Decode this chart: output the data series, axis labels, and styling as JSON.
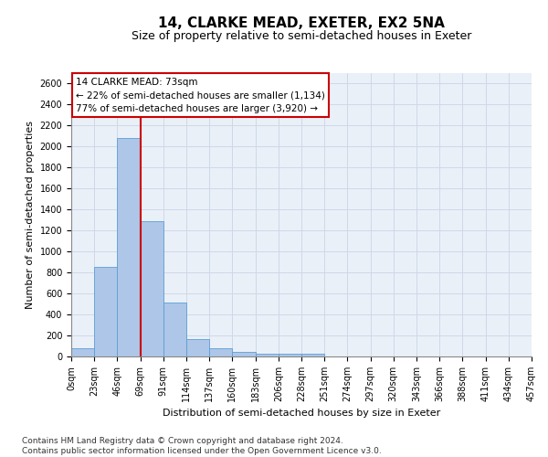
{
  "title": "14, CLARKE MEAD, EXETER, EX2 5NA",
  "subtitle": "Size of property relative to semi-detached houses in Exeter",
  "xlabel": "Distribution of semi-detached houses by size in Exeter",
  "ylabel": "Number of semi-detached properties",
  "bar_values": [
    75,
    850,
    2080,
    1285,
    510,
    165,
    75,
    40,
    30,
    25,
    25,
    0,
    0,
    0,
    0,
    0,
    0,
    0,
    0,
    0
  ],
  "bin_labels": [
    "0sqm",
    "23sqm",
    "46sqm",
    "69sqm",
    "91sqm",
    "114sqm",
    "137sqm",
    "160sqm",
    "183sqm",
    "206sqm",
    "228sqm",
    "251sqm",
    "274sqm",
    "297sqm",
    "320sqm",
    "343sqm",
    "366sqm",
    "388sqm",
    "411sqm",
    "434sqm",
    "457sqm"
  ],
  "bar_color": "#aec6e8",
  "bar_edge_color": "#5a9fd4",
  "grid_color": "#d0d8e8",
  "vline_x": 3,
  "vline_color": "#cc0000",
  "annotation_title": "14 CLARKE MEAD: 73sqm",
  "annotation_line1": "← 22% of semi-detached houses are smaller (1,134)",
  "annotation_line2": "77% of semi-detached houses are larger (3,920) →",
  "annotation_box_color": "#ffffff",
  "annotation_box_edge": "#cc0000",
  "ylim": [
    0,
    2700
  ],
  "yticks": [
    0,
    200,
    400,
    600,
    800,
    1000,
    1200,
    1400,
    1600,
    1800,
    2000,
    2200,
    2400,
    2600
  ],
  "footer_line1": "Contains HM Land Registry data © Crown copyright and database right 2024.",
  "footer_line2": "Contains public sector information licensed under the Open Government Licence v3.0.",
  "title_fontsize": 11,
  "subtitle_fontsize": 9,
  "tick_fontsize": 7,
  "ylabel_fontsize": 8,
  "xlabel_fontsize": 8,
  "annotation_fontsize": 7.5,
  "footer_fontsize": 6.5
}
